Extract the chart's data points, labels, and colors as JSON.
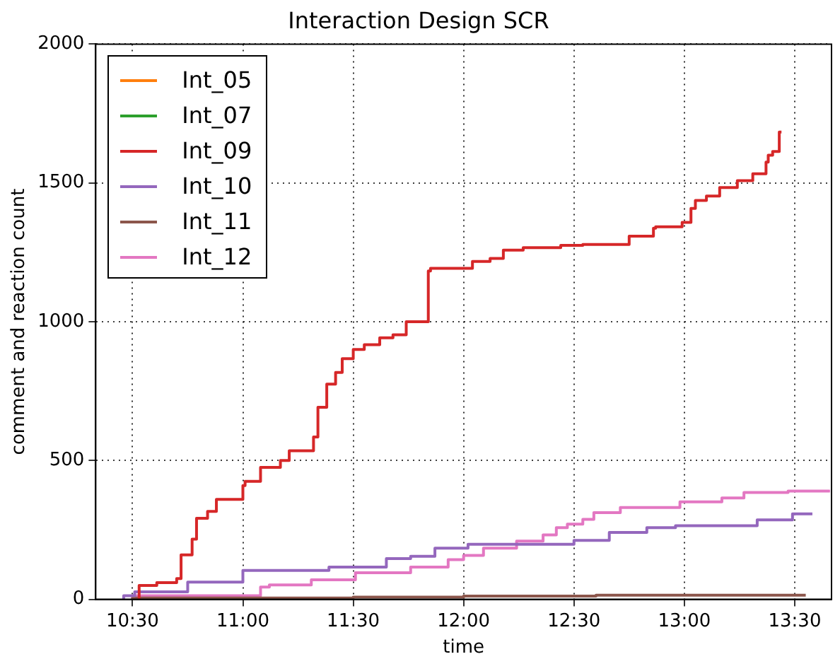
{
  "chart_data": {
    "type": "step",
    "title": "Interaction Design SCR",
    "xlabel": "time",
    "ylabel": "comment and reaction count",
    "xlim": [
      10.3333,
      13.6667
    ],
    "xticks": [
      {
        "value": 10.5,
        "label": "10:30"
      },
      {
        "value": 11,
        "label": "11:00"
      },
      {
        "value": 11.5,
        "label": "11:30"
      },
      {
        "value": 12,
        "label": "12:00"
      },
      {
        "value": 12.5,
        "label": "12:30"
      },
      {
        "value": 13,
        "label": "13:00"
      },
      {
        "value": 13.5,
        "label": "13:30"
      }
    ],
    "ylim": [
      0,
      2000
    ],
    "yticks": [
      0,
      500,
      1000,
      1500,
      2000
    ],
    "grid": true,
    "legend": "top left",
    "marker": "none",
    "line_style": "solid",
    "series": [
      {
        "name": "Int_05",
        "color": "#ff7f0e"
      },
      {
        "name": "Int_07",
        "color": "#2ca02c"
      },
      {
        "name": "Int_09",
        "color": "#d62728",
        "x": [
          10.53,
          10.61,
          10.7,
          10.72,
          10.77,
          10.79,
          10.84,
          10.88,
          11.0,
          11.01,
          11.08,
          11.17,
          11.21,
          11.32,
          11.34,
          11.38,
          11.42,
          11.45,
          11.5,
          11.55,
          11.62,
          11.68,
          11.74,
          11.84,
          11.85,
          12.04,
          12.12,
          12.18,
          12.27,
          12.44,
          12.54,
          12.75,
          12.86,
          12.87,
          12.99,
          13.03,
          13.05,
          13.1,
          13.16,
          13.24,
          13.31,
          13.37,
          13.38,
          13.4,
          13.43,
          13.44
        ],
        "values": [
          0,
          50,
          60,
          75,
          160,
          217,
          292,
          317,
          360,
          410,
          425,
          475,
          500,
          535,
          585,
          692,
          775,
          817,
          867,
          900,
          917,
          942,
          953,
          1000,
          1183,
          1192,
          1217,
          1228,
          1258,
          1267,
          1275,
          1278,
          1308,
          1337,
          1342,
          1358,
          1408,
          1437,
          1453,
          1483,
          1508,
          1533,
          1575,
          1600,
          1613,
          1683
        ]
      },
      {
        "name": "Int_10",
        "color": "#9467bd",
        "x": [
          10.46,
          10.51,
          10.75,
          11.0,
          11.39,
          11.65,
          11.76,
          11.87,
          12.02,
          12.5,
          12.66,
          12.83,
          12.96,
          13.33,
          13.49,
          13.54,
          13.58
        ],
        "values": [
          0,
          13,
          27,
          62,
          104,
          116,
          147,
          155,
          184,
          198,
          212,
          241,
          258,
          265,
          286,
          308,
          308
        ]
      },
      {
        "name": "Int_11",
        "color": "#8c564b",
        "x": [
          10.5,
          11.5,
          12.0,
          12.6,
          13.55
        ],
        "values": [
          0,
          5,
          8,
          12,
          15
        ]
      },
      {
        "name": "Int_12",
        "color": "#e377c2",
        "x": [
          10.5,
          11.08,
          11.12,
          11.31,
          11.51,
          11.76,
          11.93,
          12.0,
          12.09,
          12.24,
          12.36,
          12.42,
          12.47,
          12.54,
          12.59,
          12.71,
          12.98,
          13.17,
          13.27,
          13.47,
          13.66
        ],
        "values": [
          0,
          13,
          44,
          52,
          70,
          96,
          116,
          143,
          158,
          184,
          210,
          232,
          258,
          271,
          288,
          312,
          331,
          351,
          365,
          385,
          390
        ]
      }
    ]
  }
}
